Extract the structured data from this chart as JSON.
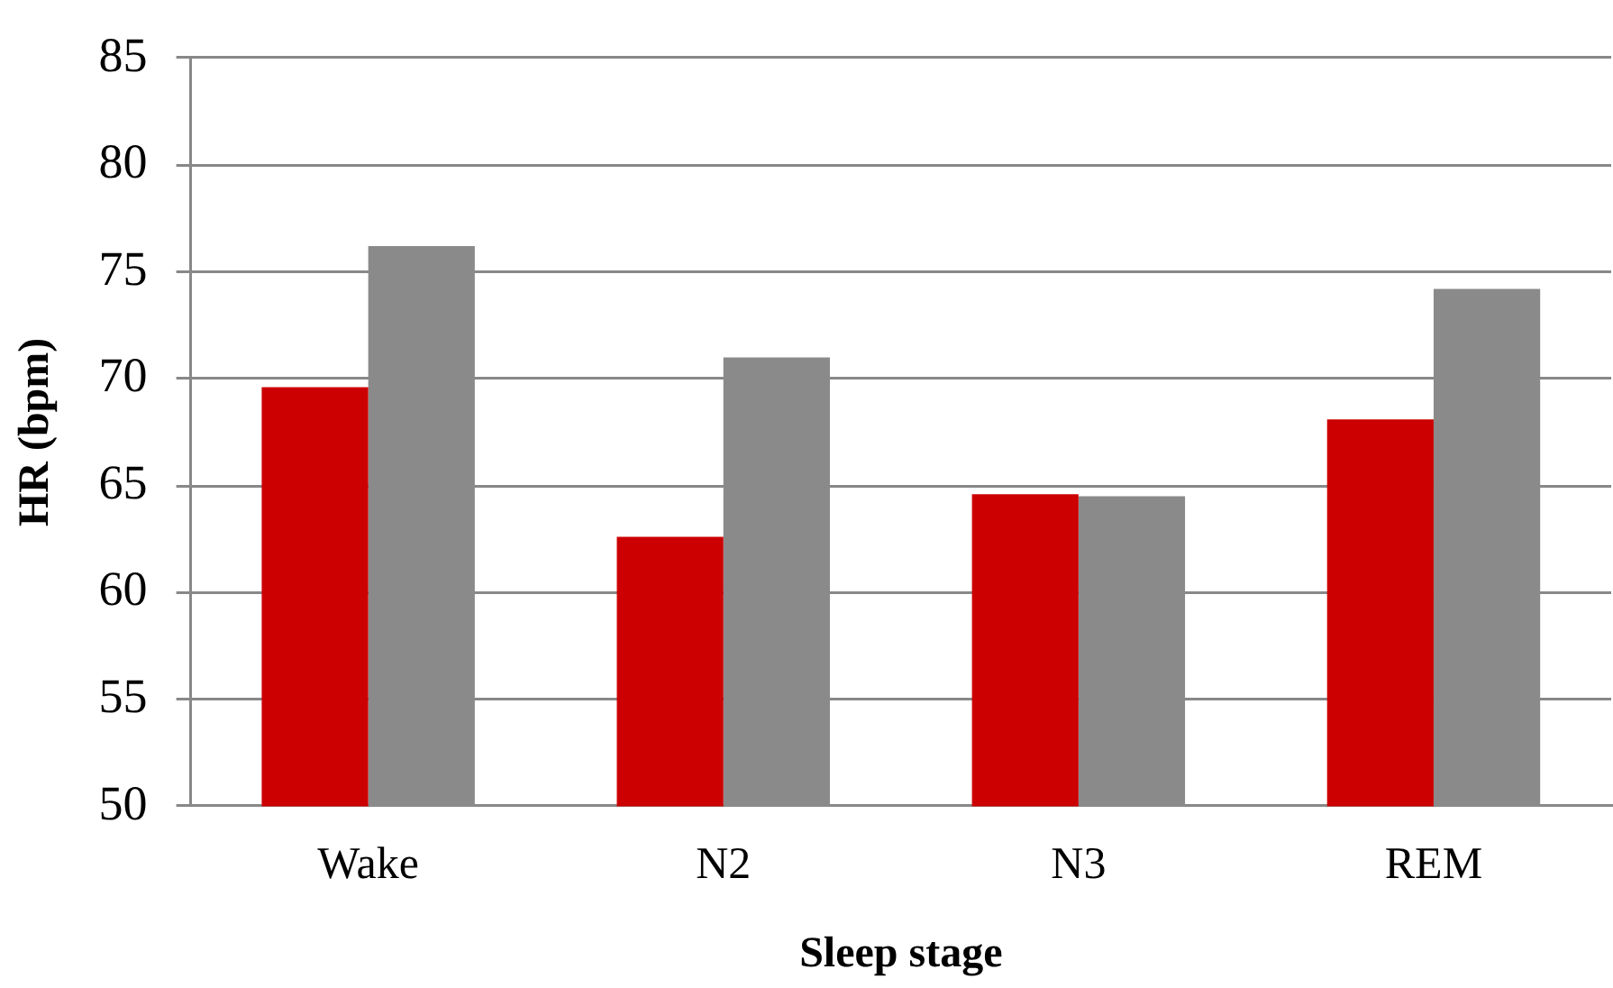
{
  "chart_data": {
    "type": "bar",
    "xlabel": "Sleep stage",
    "ylabel": "HR (bpm)",
    "categories": [
      "Wake",
      "N2",
      "N3",
      "REM"
    ],
    "series": [
      {
        "color": "#cc0000",
        "values": [
          69.6,
          62.6,
          64.6,
          68.1
        ]
      },
      {
        "color": "#8a8a8a",
        "values": [
          76.2,
          71.0,
          64.5,
          74.2
        ]
      }
    ],
    "ylim": [
      50,
      85
    ],
    "yticks": [
      50,
      55,
      60,
      65,
      70,
      75,
      80,
      85
    ],
    "grid": "y",
    "legend": false
  }
}
